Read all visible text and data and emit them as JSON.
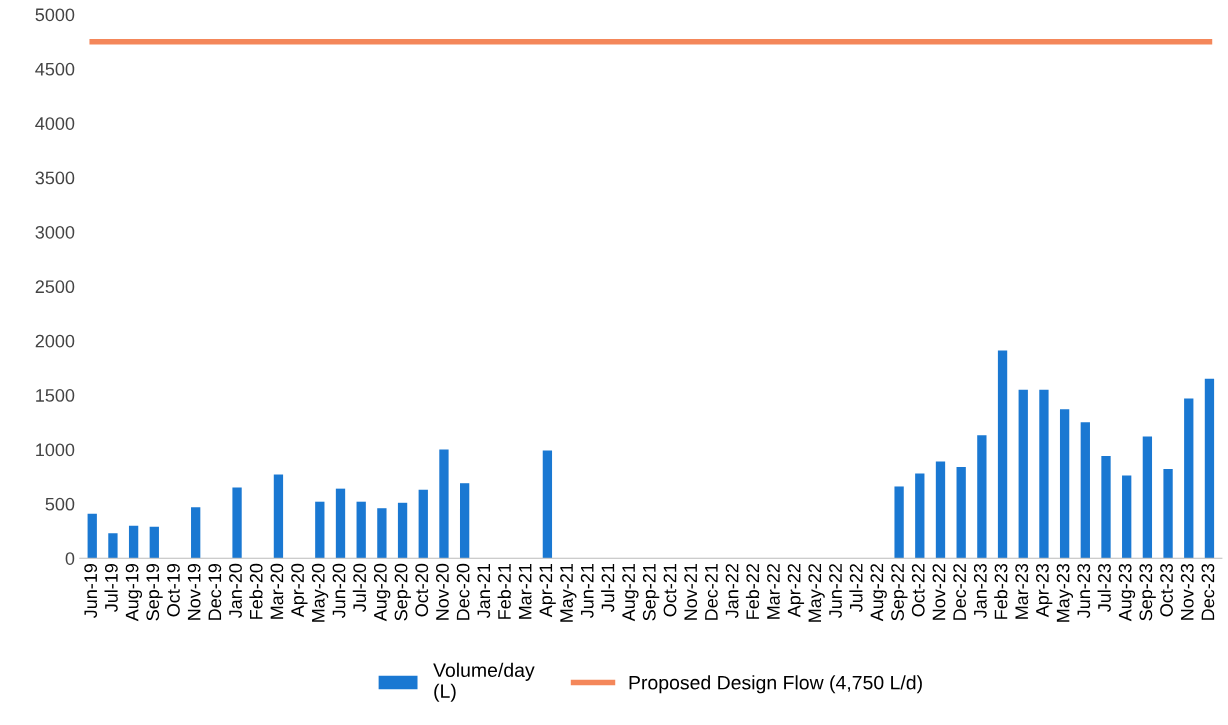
{
  "chart_data": {
    "type": "bar",
    "categories": [
      "Jun-19",
      "Jul-19",
      "Aug-19",
      "Sep-19",
      "Oct-19",
      "Nov-19",
      "Dec-19",
      "Jan-20",
      "Feb-20",
      "Mar-20",
      "Apr-20",
      "May-20",
      "Jun-20",
      "Jul-20",
      "Aug-20",
      "Sep-20",
      "Oct-20",
      "Nov-20",
      "Dec-20",
      "Jan-21",
      "Feb-21",
      "Mar-21",
      "Apr-21",
      "May-21",
      "Jun-21",
      "Jul-21",
      "Aug-21",
      "Sep-21",
      "Oct-21",
      "Nov-21",
      "Dec-21",
      "Jan-22",
      "Feb-22",
      "Mar-22",
      "Apr-22",
      "May-22",
      "Jun-22",
      "Jul-22",
      "Aug-22",
      "Sep-22",
      "Oct-22",
      "Nov-22",
      "Dec-22",
      "Jan-23",
      "Feb-23",
      "Mar-23",
      "Apr-23",
      "May-23",
      "Jun-23",
      "Jul-23",
      "Aug-23",
      "Sep-23",
      "Oct-23",
      "Nov-23",
      "Dec-23"
    ],
    "series": [
      {
        "name": "Volume/day\n(L)",
        "color": "#1a78d2",
        "values": [
          410,
          230,
          300,
          290,
          null,
          470,
          null,
          650,
          null,
          770,
          null,
          520,
          640,
          520,
          460,
          510,
          630,
          1000,
          690,
          null,
          null,
          null,
          990,
          null,
          null,
          null,
          null,
          null,
          null,
          null,
          null,
          null,
          null,
          null,
          null,
          null,
          null,
          null,
          null,
          660,
          780,
          890,
          840,
          1130,
          1910,
          1550,
          1550,
          1370,
          1250,
          940,
          760,
          1120,
          820,
          1470,
          1650
        ]
      },
      {
        "name": "Proposed Design Flow (4,750 L/d)",
        "type": "line",
        "color": "#f4875a",
        "values": [
          4750,
          4750,
          4750,
          4750,
          4750,
          4750,
          4750,
          4750,
          4750,
          4750,
          4750,
          4750,
          4750,
          4750,
          4750,
          4750,
          4750,
          4750,
          4750,
          4750,
          4750,
          4750,
          4750,
          4750,
          4750,
          4750,
          4750,
          4750,
          4750,
          4750,
          4750,
          4750,
          4750,
          4750,
          4750,
          4750,
          4750,
          4750,
          4750,
          4750,
          4750,
          4750,
          4750,
          4750,
          4750,
          4750,
          4750,
          4750,
          4750,
          4750,
          4750,
          4750,
          4750,
          4750,
          4750
        ]
      }
    ],
    "ylim": [
      0,
      5000
    ],
    "yticks": [
      0,
      500,
      1000,
      1500,
      2000,
      2500,
      3000,
      3500,
      4000,
      4500,
      5000
    ],
    "legend": "bottom",
    "grid": false
  }
}
